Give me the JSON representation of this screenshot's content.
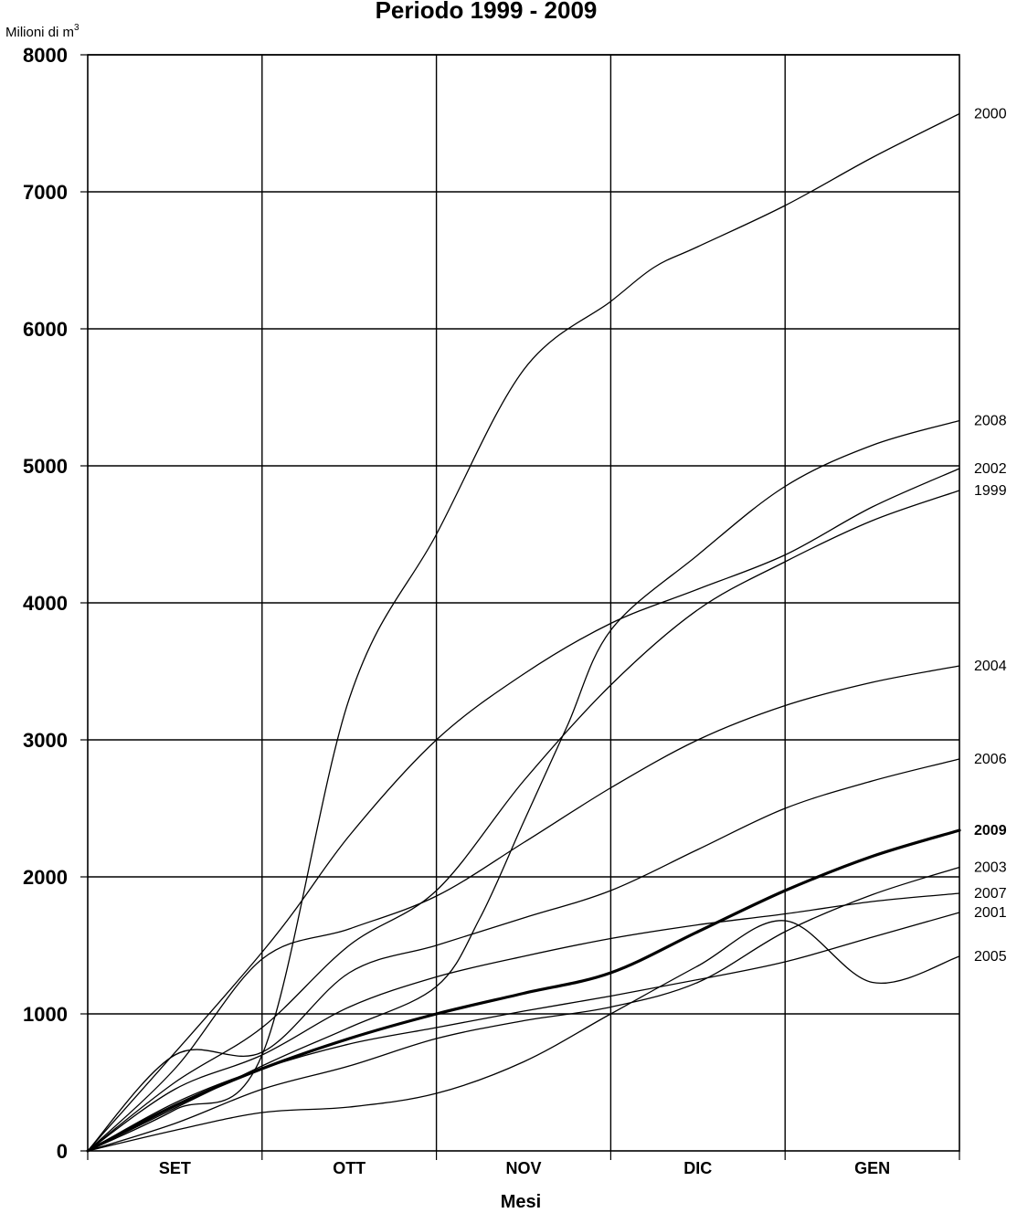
{
  "chart_data": {
    "type": "line",
    "title": "Periodo 1999 - 2009",
    "unit_label": "Milioni di m",
    "unit_superscript": "3",
    "xlabel": "Mesi",
    "ylabel": "Milioni di m³",
    "categories": [
      "SET",
      "OTT",
      "NOV",
      "DIC",
      "GEN"
    ],
    "x_breaks": [
      0,
      1,
      2,
      3,
      4,
      5
    ],
    "ylim": [
      0,
      8000
    ],
    "yticks": [
      "0",
      "1000",
      "2000",
      "3000",
      "4000",
      "5000",
      "6000",
      "7000",
      "8000"
    ],
    "grid": true,
    "series": [
      {
        "name": "2000",
        "bold": false,
        "x": [
          0,
          0.5,
          1,
          1.5,
          2,
          2.5,
          3,
          3.25,
          3.5,
          4,
          4.5,
          5
        ],
        "values": [
          0,
          300,
          700,
          3300,
          4500,
          5700,
          6200,
          6450,
          6600,
          6900,
          7250,
          7570
        ]
      },
      {
        "name": "2002",
        "bold": false,
        "x": [
          0,
          1,
          1.5,
          2,
          2.5,
          3,
          3.5,
          4,
          4.5,
          5
        ],
        "values": [
          0,
          1450,
          2300,
          3000,
          3480,
          3850,
          4100,
          4350,
          4700,
          4980
        ]
      },
      {
        "name": "2008",
        "bold": false,
        "x": [
          0,
          1,
          1.5,
          2,
          2.25,
          2.5,
          2.75,
          3,
          3.5,
          4,
          4.5,
          5
        ],
        "values": [
          0,
          620,
          900,
          1200,
          1700,
          2400,
          3100,
          3800,
          4350,
          4850,
          5150,
          5330
        ]
      },
      {
        "name": "1999",
        "bold": false,
        "x": [
          0,
          0.5,
          1,
          1.5,
          2,
          2.5,
          3,
          3.5,
          4,
          4.5,
          5
        ],
        "values": [
          0,
          500,
          900,
          1500,
          1900,
          2700,
          3400,
          3950,
          4300,
          4600,
          4820
        ]
      },
      {
        "name": "2004",
        "bold": false,
        "x": [
          0,
          0.5,
          1,
          1.5,
          2,
          2.5,
          3,
          3.5,
          4,
          4.5,
          5
        ],
        "values": [
          0,
          600,
          1400,
          1620,
          1860,
          2250,
          2650,
          3000,
          3250,
          3420,
          3540
        ]
      },
      {
        "name": "2006",
        "bold": false,
        "x": [
          0,
          0.5,
          1,
          1.5,
          2,
          2.5,
          3,
          3.5,
          4,
          4.5,
          5
        ],
        "values": [
          0,
          700,
          720,
          1300,
          1500,
          1700,
          1900,
          2200,
          2500,
          2700,
          2860
        ]
      },
      {
        "name": "2009",
        "bold": true,
        "x": [
          0,
          0.5,
          1,
          1.5,
          2,
          2.5,
          3,
          3.5,
          4,
          4.5,
          5
        ],
        "values": [
          0,
          330,
          600,
          820,
          1000,
          1150,
          1300,
          1600,
          1900,
          2150,
          2340
        ]
      },
      {
        "name": "2003",
        "bold": false,
        "x": [
          0,
          0.5,
          1,
          1.5,
          2,
          2.5,
          3,
          3.5,
          4,
          4.5,
          5
        ],
        "values": [
          0,
          200,
          450,
          620,
          820,
          950,
          1050,
          1230,
          1600,
          1870,
          2070
        ]
      },
      {
        "name": "2001",
        "bold": false,
        "x": [
          0,
          0.5,
          1,
          1.5,
          2,
          2.5,
          3,
          3.5,
          4,
          4.5,
          5
        ],
        "values": [
          0,
          350,
          600,
          780,
          900,
          1020,
          1130,
          1250,
          1380,
          1560,
          1740
        ]
      },
      {
        "name": "2007",
        "bold": false,
        "x": [
          0,
          0.5,
          1,
          1.5,
          2,
          2.5,
          3,
          3.5,
          4,
          4.5,
          5
        ],
        "values": [
          0,
          450,
          700,
          1050,
          1270,
          1420,
          1550,
          1650,
          1730,
          1820,
          1880
        ]
      },
      {
        "name": "2005",
        "bold": false,
        "x": [
          0,
          0.5,
          1,
          1.5,
          2,
          2.5,
          3,
          3.5,
          4,
          4.5,
          5
        ],
        "values": [
          0,
          150,
          280,
          320,
          420,
          650,
          1000,
          1350,
          1680,
          1230,
          1420
        ]
      }
    ]
  }
}
